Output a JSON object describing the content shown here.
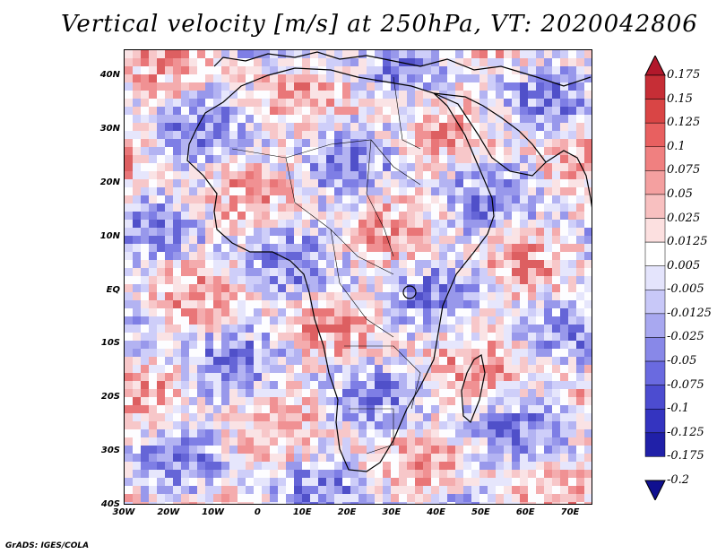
{
  "title": "Vertical velocity [m/s] at 250hPa, VT: 2020042806",
  "credit": "GrADS: IGES/COLA",
  "lat_ticks": [
    "40N",
    "30N",
    "20N",
    "10N",
    "EQ",
    "10S",
    "20S",
    "30S",
    "40S"
  ],
  "lon_ticks": [
    "30W",
    "20W",
    "10W",
    "0",
    "10E",
    "20E",
    "30E",
    "40E",
    "50E",
    "60E",
    "70E"
  ],
  "colorbar": {
    "labels": [
      "0.175",
      "0.15",
      "0.125",
      "0.1",
      "0.075",
      "0.05",
      "0.025",
      "0.0125",
      "0.005",
      "-0.005",
      "-0.0125",
      "-0.025",
      "-0.05",
      "-0.075",
      "-0.1",
      "-0.125",
      "-0.175",
      "-0.2"
    ],
    "colors": [
      "#b2182b",
      "#c62e36",
      "#d94545",
      "#e86060",
      "#f08080",
      "#f4a0a0",
      "#f8c0c0",
      "#fce0e0",
      "#ffffff",
      "#e4e4fc",
      "#c8c8f8",
      "#a8a8f0",
      "#8888e8",
      "#6a6ae0",
      "#4c4cd0",
      "#3434c0",
      "#2020a8",
      "#101090"
    ]
  }
}
